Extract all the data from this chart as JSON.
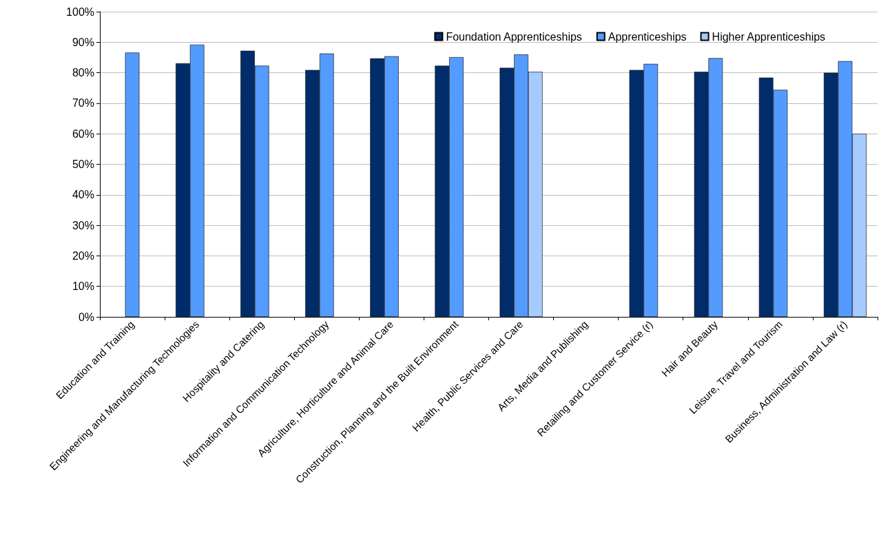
{
  "chart_data": {
    "type": "bar",
    "categories": [
      "Education and Training",
      "Engineering and Manufacturing Technologies",
      "Hospitality and Catering",
      "Information and Communication Technology",
      "Agriculture, Horticulture and Animal Care",
      "Construction, Planning and the Built Environment",
      "Health, Public Services and Care",
      "Arts, Media and Publishing",
      "Retailing and Customer Service (r)",
      "Hair and Beauty",
      "Leisure, Travel and Tourism",
      "Business, Administration and Law (r)"
    ],
    "series": [
      {
        "name": "Foundation Apprenticeships",
        "color": "#002d6a",
        "values": [
          null,
          83.1,
          87.2,
          80.9,
          84.7,
          82.3,
          81.6,
          null,
          80.9,
          80.3,
          78.4,
          80.0
        ]
      },
      {
        "name": "Apprenticeships",
        "color": "#549bff",
        "values": [
          86.6,
          89.2,
          82.3,
          86.3,
          85.4,
          85.1,
          86.0,
          null,
          82.9,
          84.8,
          74.4,
          83.8
        ]
      },
      {
        "name": "Higher Apprenticeships",
        "color": "#a6cbff",
        "values": [
          null,
          null,
          null,
          null,
          null,
          null,
          80.3,
          null,
          null,
          null,
          null,
          60.0
        ]
      }
    ],
    "ylim": [
      0,
      100
    ],
    "yticks": [
      {
        "value": 0,
        "label": "0%"
      },
      {
        "value": 10,
        "label": "10%"
      },
      {
        "value": 20,
        "label": "20%"
      },
      {
        "value": 30,
        "label": "30%"
      },
      {
        "value": 40,
        "label": "40%"
      },
      {
        "value": 50,
        "label": "50%"
      },
      {
        "value": 60,
        "label": "60%"
      },
      {
        "value": 70,
        "label": "70%"
      },
      {
        "value": 80,
        "label": "80%"
      },
      {
        "value": 90,
        "label": "90%"
      },
      {
        "value": 100,
        "label": "100%"
      }
    ],
    "grid": "y",
    "legend": "top right"
  }
}
